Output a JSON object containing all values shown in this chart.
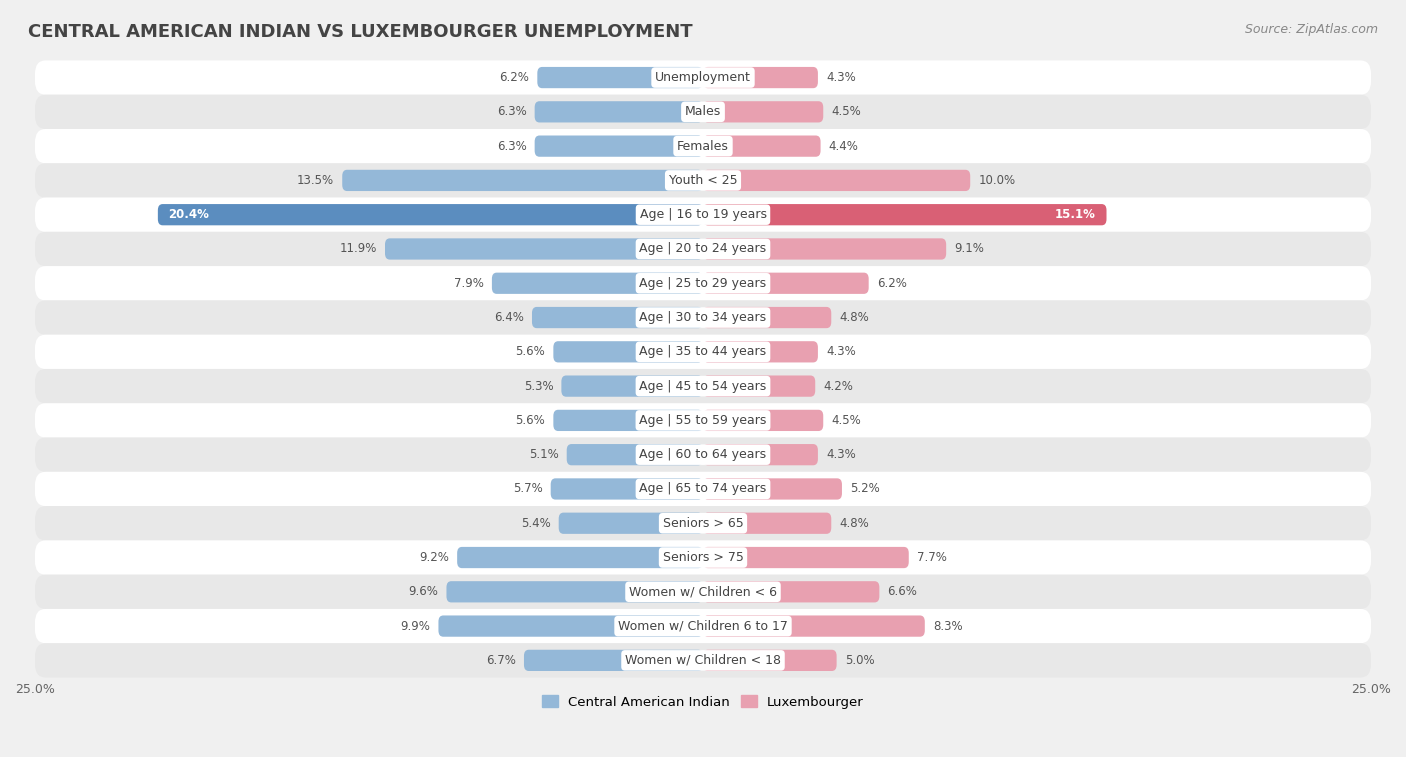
{
  "title": "CENTRAL AMERICAN INDIAN VS LUXEMBOURGER UNEMPLOYMENT",
  "source": "Source: ZipAtlas.com",
  "categories": [
    "Unemployment",
    "Males",
    "Females",
    "Youth < 25",
    "Age | 16 to 19 years",
    "Age | 20 to 24 years",
    "Age | 25 to 29 years",
    "Age | 30 to 34 years",
    "Age | 35 to 44 years",
    "Age | 45 to 54 years",
    "Age | 55 to 59 years",
    "Age | 60 to 64 years",
    "Age | 65 to 74 years",
    "Seniors > 65",
    "Seniors > 75",
    "Women w/ Children < 6",
    "Women w/ Children 6 to 17",
    "Women w/ Children < 18"
  ],
  "left_values": [
    6.2,
    6.3,
    6.3,
    13.5,
    20.4,
    11.9,
    7.9,
    6.4,
    5.6,
    5.3,
    5.6,
    5.1,
    5.7,
    5.4,
    9.2,
    9.6,
    9.9,
    6.7
  ],
  "right_values": [
    4.3,
    4.5,
    4.4,
    10.0,
    15.1,
    9.1,
    6.2,
    4.8,
    4.3,
    4.2,
    4.5,
    4.3,
    5.2,
    4.8,
    7.7,
    6.6,
    8.3,
    5.0
  ],
  "left_color": "#94b8d8",
  "right_color": "#e8a0b0",
  "left_highlight_color": "#5b8dbf",
  "right_highlight_color": "#d96075",
  "highlight_index": 4,
  "xlim": 25.0,
  "left_label": "Central American Indian",
  "right_label": "Luxembourger",
  "bg_color": "#f0f0f0",
  "row_bg_white": "#ffffff",
  "row_bg_gray": "#e8e8e8",
  "title_fontsize": 13,
  "source_fontsize": 9,
  "label_fontsize": 9,
  "value_fontsize": 8.5
}
